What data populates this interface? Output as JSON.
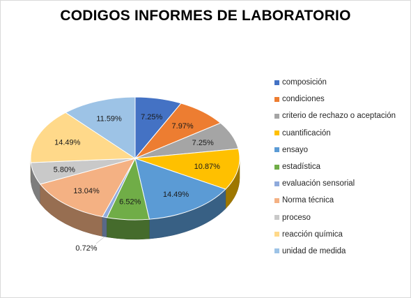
{
  "chart_data": {
    "type": "pie",
    "title": "CODIGOS INFORMES DE LABORATORIO",
    "legend_position": "right",
    "three_d": true,
    "categories": [
      "composición",
      "condiciones",
      "criterio de rechazo o aceptación",
      "cuantificación",
      "ensayo",
      "estadística",
      "evaluación sensorial",
      "Norma técnica",
      "proceso",
      "reacción química",
      "unidad de medida"
    ],
    "values": [
      7.25,
      7.97,
      7.25,
      10.87,
      14.49,
      6.52,
      0.72,
      13.04,
      5.8,
      14.49,
      11.59
    ],
    "labels": [
      "7.25%",
      "7.97%",
      "7.25%",
      "10.87%",
      "14.49%",
      "6.52%",
      "0.72%",
      "13.04%",
      "5.80%",
      "14.49%",
      "11.59%"
    ],
    "colors": [
      "#4472c4",
      "#ed7d31",
      "#a5a5a5",
      "#ffc000",
      "#5b9bd5",
      "#70ad47",
      "#8faadc",
      "#f4b183",
      "#c9c9c9",
      "#ffd98a",
      "#9dc3e6"
    ]
  }
}
